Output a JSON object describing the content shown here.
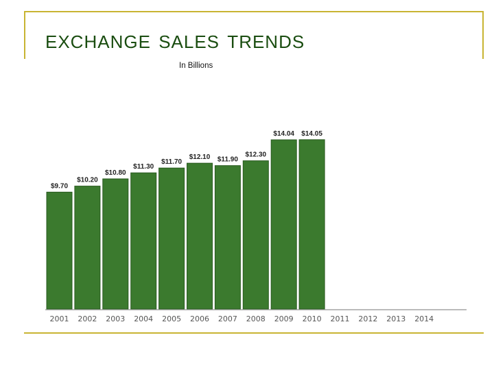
{
  "slide": {
    "accent_color": "#c8b431",
    "title_color": "#1a4d10"
  },
  "chart_data": {
    "type": "bar",
    "title": "Exchange Sales Trends",
    "subtitle": "In Billions",
    "categories": [
      "2001",
      "2002",
      "2003",
      "2004",
      "2005",
      "2006",
      "2007",
      "2008",
      "2009",
      "2010",
      "2011",
      "2012",
      "2013",
      "2014"
    ],
    "values": [
      9.7,
      10.2,
      10.8,
      11.3,
      11.7,
      12.1,
      11.9,
      12.3,
      14.04,
      14.05,
      null,
      null,
      null,
      null
    ],
    "data_labels": [
      "$9.70",
      "$10.20",
      "$10.80",
      "$11.30",
      "$11.70",
      "$12.10",
      "$11.90",
      "$12.30",
      "$14.04",
      "$14.05",
      "",
      "",
      "",
      ""
    ],
    "xlabel": "",
    "ylabel": "",
    "ylim": [
      0,
      19.5
    ],
    "bar_color": "#3b7a2e",
    "bar_edge_color": "#2a5a20",
    "grid": false,
    "legend": "none"
  }
}
